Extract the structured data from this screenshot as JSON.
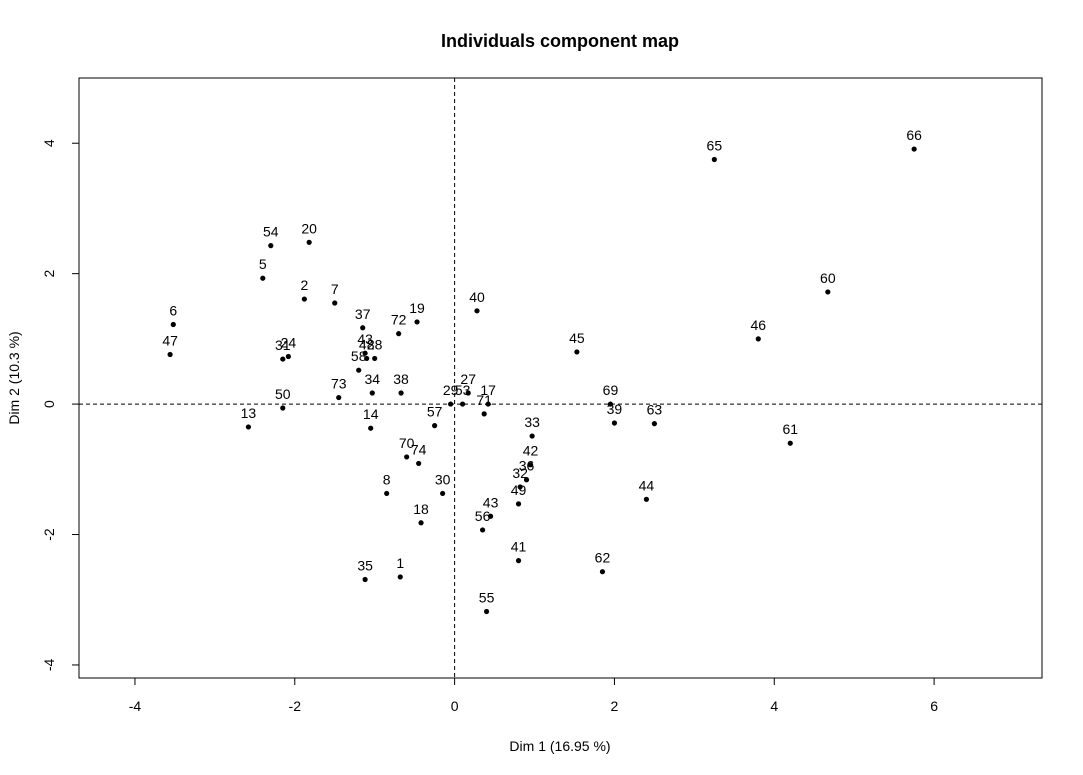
{
  "chart_data": {
    "type": "scatter",
    "title": "Individuals component map",
    "xlabel": "Dim 1 (16.95 %)",
    "ylabel": "Dim 2 (10.3 %)",
    "xlim": [
      -4.7,
      7.35
    ],
    "ylim": [
      -4.2,
      5.0
    ],
    "xticks": [
      -4,
      -2,
      0,
      2,
      4,
      6
    ],
    "yticks": [
      -4,
      -2,
      0,
      2,
      4
    ],
    "reference_lines": {
      "x": 0,
      "y": 0,
      "style": "dashed"
    },
    "points": [
      {
        "label": "66",
        "x": 5.75,
        "y": 3.91
      },
      {
        "label": "65",
        "x": 3.25,
        "y": 3.75
      },
      {
        "label": "60",
        "x": 4.67,
        "y": 1.72
      },
      {
        "label": "46",
        "x": 3.8,
        "y": 1.0
      },
      {
        "label": "45",
        "x": 1.53,
        "y": 0.8
      },
      {
        "label": "61",
        "x": 4.2,
        "y": -0.6
      },
      {
        "label": "69",
        "x": 1.95,
        "y": 0.0
      },
      {
        "label": "39",
        "x": 2.0,
        "y": -0.29
      },
      {
        "label": "63",
        "x": 2.5,
        "y": -0.3
      },
      {
        "label": "44",
        "x": 2.4,
        "y": -1.46
      },
      {
        "label": "62",
        "x": 1.85,
        "y": -2.57
      },
      {
        "label": "54",
        "x": -2.3,
        "y": 2.43
      },
      {
        "label": "20",
        "x": -1.82,
        "y": 2.48
      },
      {
        "label": "5",
        "x": -2.4,
        "y": 1.93
      },
      {
        "label": "2",
        "x": -1.88,
        "y": 1.61
      },
      {
        "label": "7",
        "x": -1.5,
        "y": 1.55
      },
      {
        "label": "6",
        "x": -3.52,
        "y": 1.22
      },
      {
        "label": "47",
        "x": -3.56,
        "y": 0.76
      },
      {
        "label": "37",
        "x": -1.15,
        "y": 1.17
      },
      {
        "label": "19",
        "x": -0.47,
        "y": 1.26
      },
      {
        "label": "72",
        "x": -0.7,
        "y": 1.08
      },
      {
        "label": "40",
        "x": 0.28,
        "y": 1.43
      },
      {
        "label": "31",
        "x": -2.15,
        "y": 0.69
      },
      {
        "label": "24",
        "x": -2.08,
        "y": 0.73
      },
      {
        "label": "43",
        "x": -1.12,
        "y": 0.78
      },
      {
        "label": "58",
        "x": -1.2,
        "y": 0.52
      },
      {
        "label": "48",
        "x": -1.1,
        "y": 0.7
      },
      {
        "label": "28",
        "x": -1.0,
        "y": 0.7
      },
      {
        "label": "50",
        "x": -2.15,
        "y": -0.06
      },
      {
        "label": "13",
        "x": -2.58,
        "y": -0.35
      },
      {
        "label": "73",
        "x": -1.45,
        "y": 0.1
      },
      {
        "label": "34",
        "x": -1.03,
        "y": 0.17
      },
      {
        "label": "38",
        "x": -0.67,
        "y": 0.17
      },
      {
        "label": "14",
        "x": -1.05,
        "y": -0.37
      },
      {
        "label": "29",
        "x": -0.05,
        "y": 0.0
      },
      {
        "label": "53",
        "x": 0.1,
        "y": 0.0
      },
      {
        "label": "27",
        "x": 0.17,
        "y": 0.17
      },
      {
        "label": "17",
        "x": 0.42,
        "y": 0.0
      },
      {
        "label": "71",
        "x": 0.37,
        "y": -0.15
      },
      {
        "label": "57",
        "x": -0.25,
        "y": -0.33
      },
      {
        "label": "33",
        "x": 0.97,
        "y": -0.49
      },
      {
        "label": "42",
        "x": 0.95,
        "y": -0.93
      },
      {
        "label": "36",
        "x": 0.9,
        "y": -1.16
      },
      {
        "label": "32",
        "x": 0.82,
        "y": -1.27
      },
      {
        "label": "49",
        "x": 0.8,
        "y": -1.53
      },
      {
        "label": "43",
        "x": 0.45,
        "y": -1.72
      },
      {
        "label": "56",
        "x": 0.35,
        "y": -1.93
      },
      {
        "label": "41",
        "x": 0.8,
        "y": -2.4
      },
      {
        "label": "55",
        "x": 0.4,
        "y": -3.18
      },
      {
        "label": "70",
        "x": -0.6,
        "y": -0.81
      },
      {
        "label": "74",
        "x": -0.45,
        "y": -0.91
      },
      {
        "label": "8",
        "x": -0.85,
        "y": -1.37
      },
      {
        "label": "30",
        "x": -0.15,
        "y": -1.37
      },
      {
        "label": "18",
        "x": -0.42,
        "y": -1.82
      },
      {
        "label": "35",
        "x": -1.12,
        "y": -2.69
      },
      {
        "label": "1",
        "x": -0.68,
        "y": -2.65
      }
    ]
  }
}
